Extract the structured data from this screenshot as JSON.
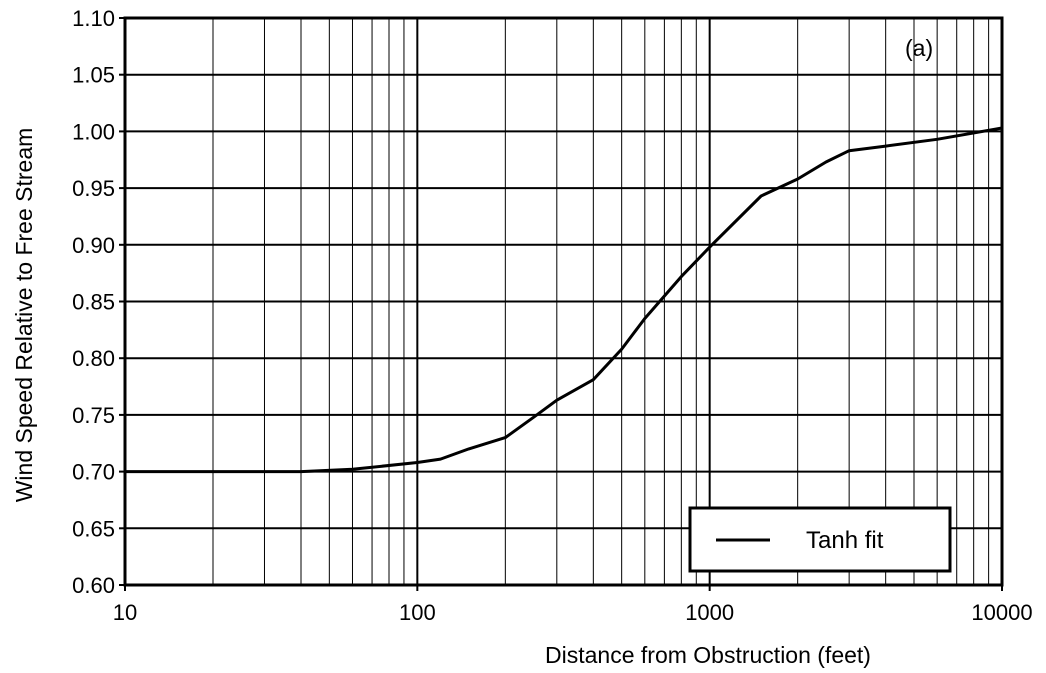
{
  "chart_data": {
    "type": "line",
    "xlabel": "Distance from Obstruction (feet)",
    "ylabel": "Wind Speed Relative to Free Stream",
    "x_scale": "log",
    "xlim": [
      10,
      10000
    ],
    "ylim": [
      0.6,
      1.1
    ],
    "x_ticks": [
      {
        "value": 10,
        "label": "10"
      },
      {
        "value": 100,
        "label": "100"
      },
      {
        "value": 1000,
        "label": "1000"
      },
      {
        "value": 10000,
        "label": "10000"
      }
    ],
    "y_ticks": [
      {
        "value": 0.6,
        "label": "0.60"
      },
      {
        "value": 0.65,
        "label": "0.65"
      },
      {
        "value": 0.7,
        "label": "0.70"
      },
      {
        "value": 0.75,
        "label": "0.75"
      },
      {
        "value": 0.8,
        "label": "0.80"
      },
      {
        "value": 0.85,
        "label": "0.85"
      },
      {
        "value": 0.9,
        "label": "0.90"
      },
      {
        "value": 0.95,
        "label": "0.95"
      },
      {
        "value": 1.0,
        "label": "1.00"
      },
      {
        "value": 1.05,
        "label": "1.05"
      },
      {
        "value": 1.1,
        "label": "1.10"
      }
    ],
    "grid": true,
    "panel_label": "(a)",
    "legend": {
      "position": "bottom-right",
      "entries": [
        "Tanh fit"
      ]
    },
    "series": [
      {
        "name": "Tanh fit",
        "color": "#000000",
        "x": [
          10,
          20,
          40,
          60,
          100,
          120,
          150,
          200,
          250,
          300,
          400,
          500,
          600,
          800,
          1000,
          1500,
          2000,
          2500,
          3000,
          4000,
          6000,
          10000
        ],
        "y": [
          0.7,
          0.7,
          0.7,
          0.702,
          0.708,
          0.711,
          0.72,
          0.73,
          0.748,
          0.763,
          0.781,
          0.808,
          0.835,
          0.872,
          0.898,
          0.943,
          0.958,
          0.973,
          0.983,
          0.987,
          0.993,
          1.003
        ]
      }
    ]
  }
}
